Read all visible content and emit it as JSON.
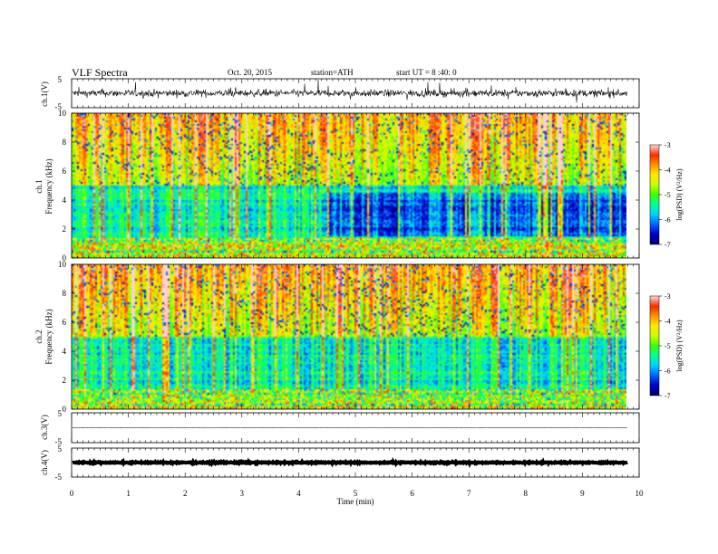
{
  "header": {
    "title": "VLF Spectra",
    "date": "Oct. 20, 2015",
    "station": "station=ATH",
    "start_ut": "start  UT  =   8 :40: 0"
  },
  "chart_data": [
    {
      "type": "line",
      "name": "ch1-waveform",
      "ylabel": "ch.1(V)",
      "ylim": [
        -5,
        5
      ],
      "yticks": [
        "5",
        "-5"
      ],
      "xlim": [
        0,
        10
      ],
      "description_values": {
        "baseline": 0,
        "noise_amplitude": 1.2
      }
    },
    {
      "type": "heatmap",
      "name": "ch1-spectrogram",
      "ylabel_top": "ch.1",
      "ylabel": "Frequency  (kHz)",
      "ylim": [
        0,
        10
      ],
      "yticks": [
        "0",
        "2",
        "4",
        "6",
        "8",
        "10"
      ],
      "xlim": [
        0,
        9.8
      ],
      "colorbar": {
        "label": "log(PSD) (V²/Hz)",
        "range": [
          -7,
          -3
        ],
        "ticks": [
          "-3",
          "-4",
          "-5",
          "-6",
          "-7"
        ]
      }
    },
    {
      "type": "heatmap",
      "name": "ch2-spectrogram",
      "ylabel_top": "ch.2",
      "ylabel": "Frequency  (kHz)",
      "ylim": [
        0,
        10
      ],
      "yticks": [
        "0",
        "2",
        "4",
        "6",
        "8",
        "10"
      ],
      "xlim": [
        0,
        9.8
      ],
      "colorbar": {
        "label": "log(PSD) (V²/Hz)",
        "range": [
          -7,
          -3
        ],
        "ticks": [
          "-3",
          "-4",
          "-5",
          "-6",
          "-7"
        ]
      }
    },
    {
      "type": "line",
      "name": "ch3-waveform",
      "ylabel": "ch.3(V)",
      "ylim": [
        -5,
        5
      ],
      "yticks": [
        "5",
        "-5"
      ],
      "description_values": {
        "baseline": 0,
        "noise_amplitude": 0.05
      }
    },
    {
      "type": "line",
      "name": "ch4-waveform",
      "ylabel": "ch.4(V)",
      "ylim": [
        -5,
        5
      ],
      "yticks": [
        "5",
        "-5"
      ],
      "description_values": {
        "baseline": 0,
        "noise_amplitude": 0.2
      }
    }
  ],
  "xaxis": {
    "label": "Time  (min)",
    "ticks": [
      "0",
      "1",
      "2",
      "3",
      "4",
      "5",
      "6",
      "7",
      "8",
      "9",
      "10"
    ],
    "range": [
      0,
      10
    ]
  },
  "colors": {
    "colormap": [
      "#000070",
      "#0000c8",
      "#0064ff",
      "#00d2ff",
      "#00ff9a",
      "#3cff00",
      "#c8ff00",
      "#ffea00",
      "#ff9600",
      "#ff2a00",
      "#ffd2d2"
    ]
  }
}
